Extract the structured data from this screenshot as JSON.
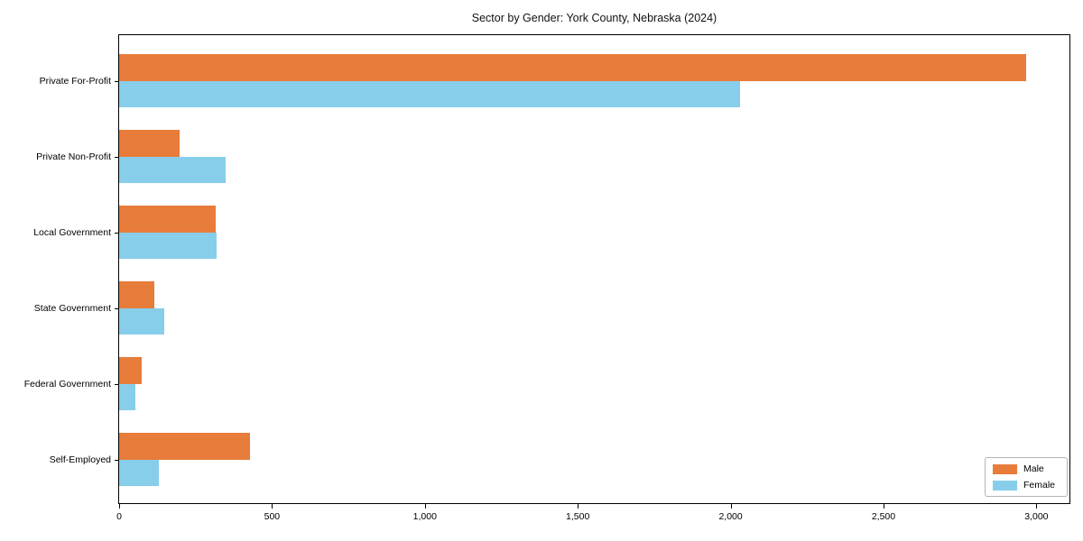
{
  "chart_data": {
    "type": "bar",
    "orientation": "horizontal",
    "title": "Sector by Gender: York County, Nebraska (2024)",
    "categories": [
      "Private For-Profit",
      "Private Non-Profit",
      "Local Government",
      "State Government",
      "Federal Government",
      "Self-Employed"
    ],
    "series": [
      {
        "name": "Male",
        "color": "#e87c3a",
        "values": [
          2965,
          198,
          315,
          114,
          74,
          427
        ]
      },
      {
        "name": "Female",
        "color": "#87ceeb",
        "values": [
          2030,
          348,
          320,
          149,
          53,
          131
        ]
      }
    ],
    "xlabel": "",
    "ylabel": "",
    "xlim": [
      0,
      3114
    ],
    "x_ticks": [
      0,
      500,
      1000,
      1500,
      2000,
      2500,
      3000
    ],
    "x_tick_labels": [
      "0",
      "500",
      "1,000",
      "1,500",
      "2,000",
      "2,500",
      "3,000"
    ],
    "grid": false,
    "legend": {
      "position": "lower right",
      "entries": [
        "Male",
        "Female"
      ]
    },
    "colors": {
      "axis": "#000000",
      "background": "#ffffff"
    }
  }
}
